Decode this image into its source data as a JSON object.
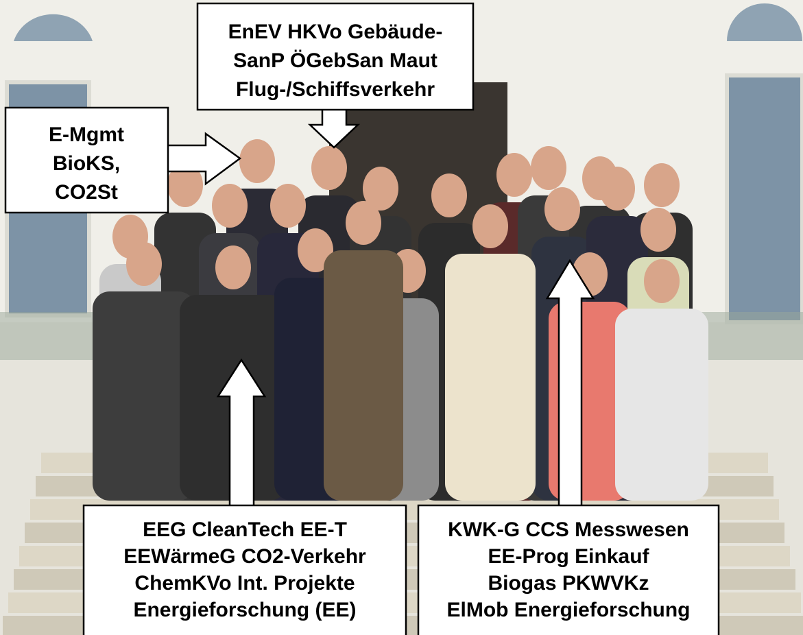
{
  "callouts": [
    {
      "lines": [
        "EnEV HKVo Gebäude-",
        "SanP ÖGebSan Maut",
        "Flug-/Schiffsverkehr"
      ]
    },
    {
      "lines": [
        "E-Mgmt",
        "BioKS,",
        "CO2St"
      ]
    },
    {
      "lines": [
        "EEG CleanTech EE-T",
        "EEWärmeG CO2-Verkehr",
        "ChemKVo Int. Projekte",
        "Energieforschung (EE)"
      ]
    },
    {
      "lines": [
        "KWK-G CCS Messwesen",
        "EE-Prog Einkauf",
        "Biogas PKWVKz",
        "ElMob Energieforschung"
      ]
    }
  ]
}
